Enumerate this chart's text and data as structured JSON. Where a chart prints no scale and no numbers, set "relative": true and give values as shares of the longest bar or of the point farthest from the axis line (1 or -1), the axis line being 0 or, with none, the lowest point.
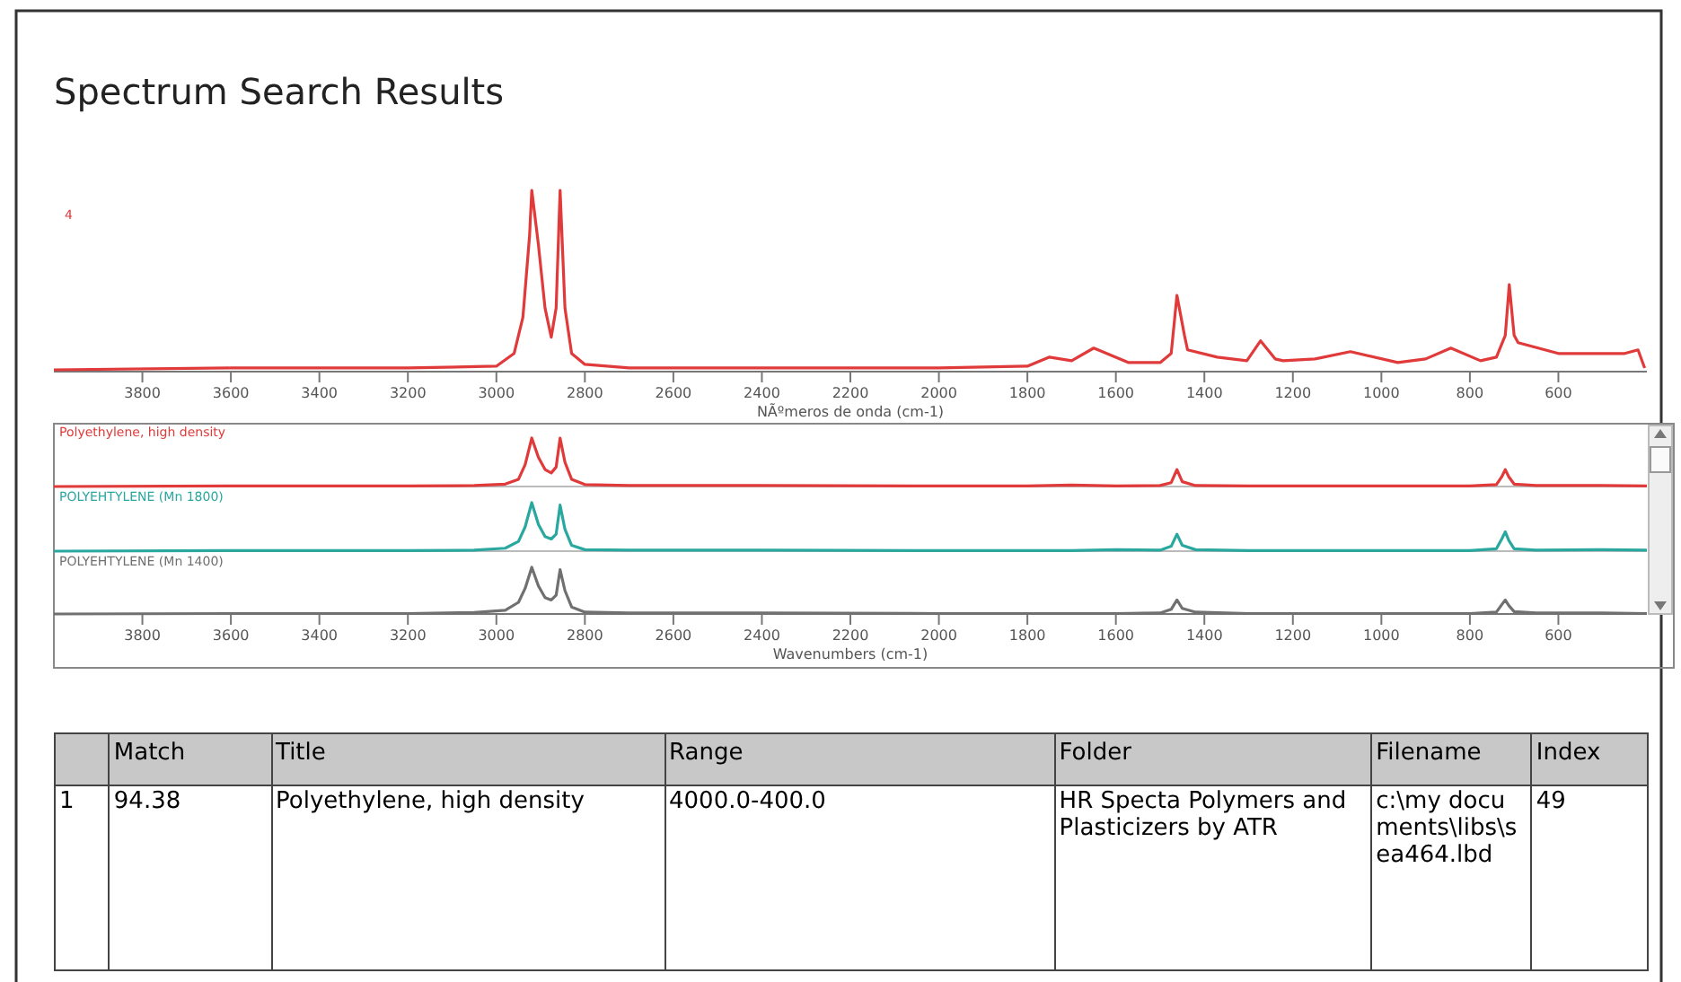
{
  "chart_data": [
    {
      "type": "line",
      "title": "Spectrum Search Results",
      "xlabel": "NÃºmeros de onda (cm-1)",
      "annotations": [
        "4"
      ],
      "relative": true,
      "color": "#e03a3a",
      "x": [
        4000,
        3600,
        3200,
        3000,
        2960,
        2940,
        2925,
        2920,
        2905,
        2890,
        2876,
        2865,
        2856,
        2845,
        2830,
        2800,
        2700,
        2400,
        2000,
        1800,
        1750,
        1700,
        1650,
        1571,
        1500,
        1475,
        1462,
        1445,
        1438,
        1371,
        1304,
        1273,
        1240,
        1222,
        1150,
        1070,
        963,
        900,
        843,
        776,
        740,
        720,
        711,
        700,
        691,
        600,
        450,
        420,
        405
      ],
      "values": [
        0.01,
        0.02,
        0.02,
        0.03,
        0.1,
        0.3,
        0.75,
        1.0,
        0.7,
        0.35,
        0.19,
        0.35,
        1.0,
        0.35,
        0.1,
        0.04,
        0.02,
        0.02,
        0.02,
        0.03,
        0.08,
        0.06,
        0.13,
        0.05,
        0.05,
        0.1,
        0.42,
        0.2,
        0.12,
        0.08,
        0.06,
        0.17,
        0.07,
        0.06,
        0.07,
        0.11,
        0.05,
        0.07,
        0.13,
        0.06,
        0.08,
        0.2,
        0.48,
        0.2,
        0.16,
        0.1,
        0.1,
        0.12,
        0.02
      ],
      "xlim": [
        4000,
        400
      ],
      "xticks": [
        3800,
        3600,
        3400,
        3200,
        3000,
        2800,
        2600,
        2400,
        2200,
        2000,
        1800,
        1600,
        1400,
        1200,
        1000,
        800,
        600
      ]
    },
    {
      "type": "line",
      "relative": true,
      "tick_labels": false,
      "xlim": [
        4000,
        400
      ],
      "x": [
        4000,
        3600,
        3200,
        3050,
        2980,
        2950,
        2935,
        2920,
        2905,
        2890,
        2876,
        2865,
        2856,
        2845,
        2830,
        2800,
        2700,
        2400,
        2000,
        1800,
        1700,
        1600,
        1500,
        1475,
        1462,
        1450,
        1420,
        1300,
        1000,
        800,
        740,
        728,
        720,
        712,
        700,
        650,
        500,
        400
      ],
      "series": [
        {
          "name": "Polyethylene, high density",
          "color": "#e03a3a",
          "values": [
            0,
            0.01,
            0.01,
            0.02,
            0.05,
            0.15,
            0.45,
            1.0,
            0.6,
            0.35,
            0.28,
            0.4,
            1.0,
            0.5,
            0.15,
            0.04,
            0.02,
            0.02,
            0.01,
            0.01,
            0.03,
            0.01,
            0.02,
            0.08,
            0.35,
            0.1,
            0.02,
            0.01,
            0.01,
            0.01,
            0.04,
            0.2,
            0.35,
            0.2,
            0.05,
            0.02,
            0.02,
            0.01
          ]
        }
      ]
    },
    {
      "type": "line",
      "relative": true,
      "tick_labels": false,
      "xlim": [
        4000,
        400
      ],
      "x": [
        4000,
        3600,
        3200,
        3050,
        2980,
        2950,
        2935,
        2920,
        2905,
        2890,
        2876,
        2865,
        2856,
        2845,
        2830,
        2800,
        2700,
        2400,
        2000,
        1800,
        1700,
        1600,
        1500,
        1475,
        1462,
        1450,
        1420,
        1300,
        1000,
        800,
        740,
        728,
        720,
        712,
        700,
        650,
        500,
        400
      ],
      "series": [
        {
          "name": "POLYEHTYLENE (Mn 1800)",
          "color": "#2aa8a0",
          "values": [
            0,
            0.01,
            0.01,
            0.02,
            0.06,
            0.2,
            0.5,
            1.0,
            0.55,
            0.3,
            0.25,
            0.35,
            0.95,
            0.45,
            0.12,
            0.03,
            0.02,
            0.02,
            0.01,
            0.01,
            0.01,
            0.03,
            0.02,
            0.1,
            0.35,
            0.12,
            0.03,
            0.01,
            0.01,
            0.01,
            0.05,
            0.25,
            0.4,
            0.22,
            0.05,
            0.02,
            0.03,
            0.02
          ]
        }
      ]
    },
    {
      "type": "line",
      "relative": true,
      "tick_labels": "x",
      "xlabel": "Wavenumbers (cm-1)",
      "xlim": [
        4000,
        400
      ],
      "xticks": [
        3800,
        3600,
        3400,
        3200,
        3000,
        2800,
        2600,
        2400,
        2200,
        2000,
        1800,
        1600,
        1400,
        1200,
        1000,
        800,
        600
      ],
      "x": [
        4000,
        3600,
        3200,
        3050,
        2980,
        2950,
        2935,
        2920,
        2905,
        2890,
        2876,
        2865,
        2856,
        2845,
        2830,
        2800,
        2700,
        2400,
        2000,
        1800,
        1700,
        1600,
        1500,
        1475,
        1462,
        1450,
        1420,
        1300,
        1000,
        800,
        740,
        728,
        720,
        712,
        700,
        650,
        500,
        400
      ],
      "series": [
        {
          "name": "POLYEHTYLENE (Mn 1400)",
          "color": "#707070",
          "values": [
            0,
            0.01,
            0.01,
            0.03,
            0.08,
            0.25,
            0.55,
            1.0,
            0.6,
            0.35,
            0.3,
            0.4,
            0.95,
            0.5,
            0.15,
            0.04,
            0.02,
            0.02,
            0.01,
            0.01,
            0.01,
            0.01,
            0.02,
            0.1,
            0.3,
            0.12,
            0.04,
            0.01,
            0.01,
            0.01,
            0.04,
            0.2,
            0.3,
            0.18,
            0.05,
            0.02,
            0.02,
            0.01
          ]
        }
      ]
    },
    {
      "type": "other",
      "annotations": [
        null,
        "Match",
        "Title",
        "Range",
        "Folder",
        "Filename",
        "Index",
        "1",
        "94.38",
        "Polyethylene, high density",
        "4000.0-400.0",
        "HR Specta Polymers and Plasticizers by ATR",
        "c:\\my documents\\libs\\sea464.lbd",
        "49"
      ]
    }
  ]
}
